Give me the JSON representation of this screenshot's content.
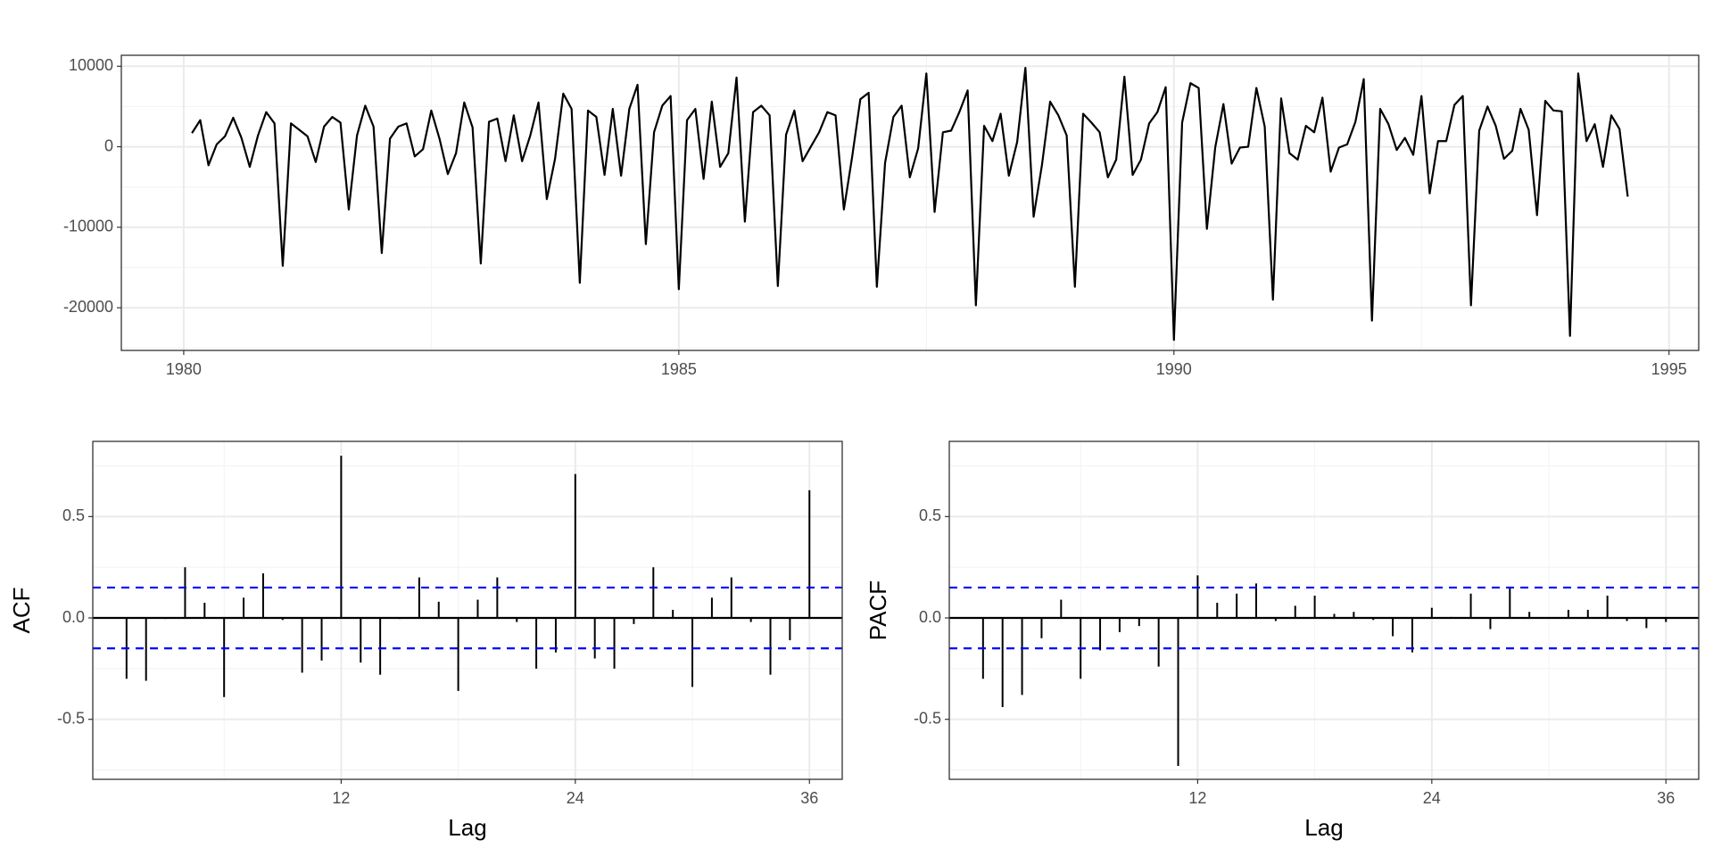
{
  "chart_data": [
    {
      "type": "line",
      "color": "#000000",
      "x": [
        1980.083,
        1980.167,
        1980.25,
        1980.333,
        1980.417,
        1980.5,
        1980.583,
        1980.667,
        1980.75,
        1980.833,
        1980.917,
        1981,
        1981.083,
        1981.167,
        1981.25,
        1981.333,
        1981.417,
        1981.5,
        1981.583,
        1981.667,
        1981.75,
        1981.833,
        1981.917,
        1982,
        1982.083,
        1982.167,
        1982.25,
        1982.333,
        1982.417,
        1982.5,
        1982.583,
        1982.667,
        1982.75,
        1982.833,
        1982.917,
        1983,
        1983.083,
        1983.167,
        1983.25,
        1983.333,
        1983.417,
        1983.5,
        1983.583,
        1983.667,
        1983.75,
        1983.833,
        1983.917,
        1984,
        1984.083,
        1984.167,
        1984.25,
        1984.333,
        1984.417,
        1984.5,
        1984.583,
        1984.667,
        1984.75,
        1984.833,
        1984.917,
        1985,
        1985.083,
        1985.167,
        1985.25,
        1985.333,
        1985.417,
        1985.5,
        1985.583,
        1985.667,
        1985.75,
        1985.833,
        1985.917,
        1986,
        1986.083,
        1986.167,
        1986.25,
        1986.333,
        1986.417,
        1986.5,
        1986.583,
        1986.667,
        1986.75,
        1986.833,
        1986.917,
        1987,
        1987.083,
        1987.167,
        1987.25,
        1987.333,
        1987.417,
        1987.5,
        1987.583,
        1987.667,
        1987.75,
        1987.833,
        1987.917,
        1988,
        1988.083,
        1988.167,
        1988.25,
        1988.333,
        1988.417,
        1988.5,
        1988.583,
        1988.667,
        1988.75,
        1988.833,
        1988.917,
        1989,
        1989.083,
        1989.167,
        1989.25,
        1989.333,
        1989.417,
        1989.5,
        1989.583,
        1989.667,
        1989.75,
        1989.833,
        1989.917,
        1990,
        1990.083,
        1990.167,
        1990.25,
        1990.333,
        1990.417,
        1990.5,
        1990.583,
        1990.667,
        1990.75,
        1990.833,
        1990.917,
        1991,
        1991.083,
        1991.167,
        1991.25,
        1991.333,
        1991.417,
        1991.5,
        1991.583,
        1991.667,
        1991.75,
        1991.833,
        1991.917,
        1992,
        1992.083,
        1992.167,
        1992.25,
        1992.333,
        1992.417,
        1992.5,
        1992.583,
        1992.667,
        1992.75,
        1992.833,
        1992.917,
        1993,
        1993.083,
        1993.167,
        1993.25,
        1993.333,
        1993.417,
        1993.5,
        1993.583,
        1993.667,
        1993.75,
        1993.833,
        1993.917,
        1994,
        1994.083,
        1994.167,
        1994.25,
        1994.333,
        1994.417,
        1994.5,
        1994.583
      ],
      "values": [
        1700,
        3300,
        -2300,
        300,
        1300,
        3600,
        1100,
        -2500,
        1400,
        4300,
        2900,
        -14800,
        2900,
        2100,
        1300,
        -1900,
        2500,
        3700,
        3000,
        -7800,
        1400,
        5100,
        2500,
        -13200,
        1000,
        2500,
        2900,
        -1200,
        -300,
        4500,
        1000,
        -3400,
        -800,
        5500,
        2400,
        -14500,
        3100,
        3500,
        -1800,
        3900,
        -1800,
        1400,
        5500,
        -6500,
        -1500,
        6600,
        4700,
        -16900,
        4500,
        3700,
        -3500,
        4700,
        -3600,
        4700,
        7700,
        -12100,
        1800,
        5100,
        6300,
        -17700,
        3300,
        4700,
        -4000,
        5600,
        -2500,
        -800,
        8600,
        -9300,
        4300,
        5100,
        3900,
        -17300,
        1500,
        4500,
        -1800,
        0,
        1800,
        4300,
        3900,
        -7800,
        -1300,
        5900,
        6700,
        -17400,
        -2000,
        3700,
        5100,
        -3800,
        -200,
        9100,
        -8100,
        1800,
        2000,
        4300,
        7000,
        -19700,
        2600,
        700,
        4100,
        -3600,
        600,
        9800,
        -8700,
        -2300,
        5600,
        3900,
        1400,
        -17400,
        4100,
        3000,
        1800,
        -3800,
        -1600,
        8700,
        -3500,
        -1600,
        2900,
        4300,
        7400,
        -24000,
        3000,
        7900,
        7300,
        -10200,
        -100,
        5300,
        -2100,
        -100,
        0,
        7300,
        2500,
        -19000,
        6000,
        -800,
        -1600,
        2600,
        1800,
        6100,
        -3100,
        -100,
        300,
        3100,
        8400,
        -21600,
        4700,
        2800,
        -400,
        1100,
        -1000,
        6300,
        -5800,
        700,
        700,
        5200,
        6300,
        -19700,
        2000,
        5000,
        2600,
        -1500,
        -500,
        4700,
        2100,
        -8500,
        5700,
        4500,
        4400,
        -23500,
        9100,
        700,
        2800,
        -2500,
        3900,
        2200,
        -6200
      ],
      "xlim": [
        1979.37,
        1995.3
      ],
      "xticks": [
        1980,
        1985,
        1990,
        1995
      ],
      "ylim": [
        -25300,
        11360
      ],
      "yticks": [
        -20000,
        -10000,
        0,
        10000
      ],
      "grid": true
    },
    {
      "type": "bar",
      "color": "#000000",
      "ylabel": "ACF",
      "xlabel": "Lag",
      "x": [
        1,
        2,
        3,
        4,
        5,
        6,
        7,
        8,
        9,
        10,
        11,
        12,
        13,
        14,
        15,
        16,
        17,
        18,
        19,
        20,
        21,
        22,
        23,
        24,
        25,
        26,
        27,
        28,
        29,
        30,
        31,
        32,
        33,
        34,
        35,
        36
      ],
      "values": [
        -0.3,
        -0.31,
        -0.005,
        0.25,
        0.075,
        -0.39,
        0.1,
        0.22,
        -0.01,
        -0.27,
        -0.21,
        0.8,
        -0.22,
        -0.28,
        -0.005,
        0.2,
        0.08,
        -0.36,
        0.09,
        0.2,
        -0.02,
        -0.25,
        -0.17,
        0.71,
        -0.2,
        -0.25,
        -0.03,
        0.25,
        0.04,
        -0.34,
        0.1,
        0.2,
        -0.02,
        -0.28,
        -0.11,
        0.63
      ],
      "bounds": [
        -0.15,
        0.15
      ],
      "bounds_color": "#0000ff",
      "xlim": [
        -0.73,
        37.68
      ],
      "xticks": [
        12,
        24,
        36
      ],
      "ylim": [
        -0.796,
        0.871
      ],
      "yticks": [
        -0.5,
        {
          "value": 0,
          "label": "0.0"
        },
        0.5
      ],
      "grid": true
    },
    {
      "type": "bar",
      "color": "#000000",
      "ylabel": "PACF",
      "xlabel": "Lag",
      "x": [
        1,
        2,
        3,
        4,
        5,
        6,
        7,
        8,
        9,
        10,
        11,
        12,
        13,
        14,
        15,
        16,
        17,
        18,
        19,
        20,
        21,
        22,
        23,
        24,
        25,
        26,
        27,
        28,
        29,
        30,
        31,
        32,
        33,
        34,
        35,
        36
      ],
      "values": [
        -0.3,
        -0.44,
        -0.38,
        -0.1,
        0.09,
        -0.3,
        -0.16,
        -0.07,
        -0.04,
        -0.24,
        -0.73,
        0.21,
        0.075,
        0.12,
        0.17,
        -0.015,
        0.06,
        0.11,
        0.02,
        0.03,
        -0.01,
        -0.09,
        -0.17,
        0.05,
        0.005,
        0.12,
        -0.055,
        0.145,
        0.03,
        0,
        0.04,
        0.04,
        0.11,
        -0.015,
        -0.05,
        -0.02
      ],
      "bounds": [
        -0.15,
        0.15
      ],
      "bounds_color": "#0000ff",
      "xlim": [
        -0.73,
        37.68
      ],
      "xticks": [
        12,
        24,
        36
      ],
      "ylim": [
        -0.796,
        0.871
      ],
      "yticks": [
        -0.5,
        {
          "value": 0,
          "label": "0.0"
        },
        0.5
      ],
      "grid": true
    }
  ]
}
